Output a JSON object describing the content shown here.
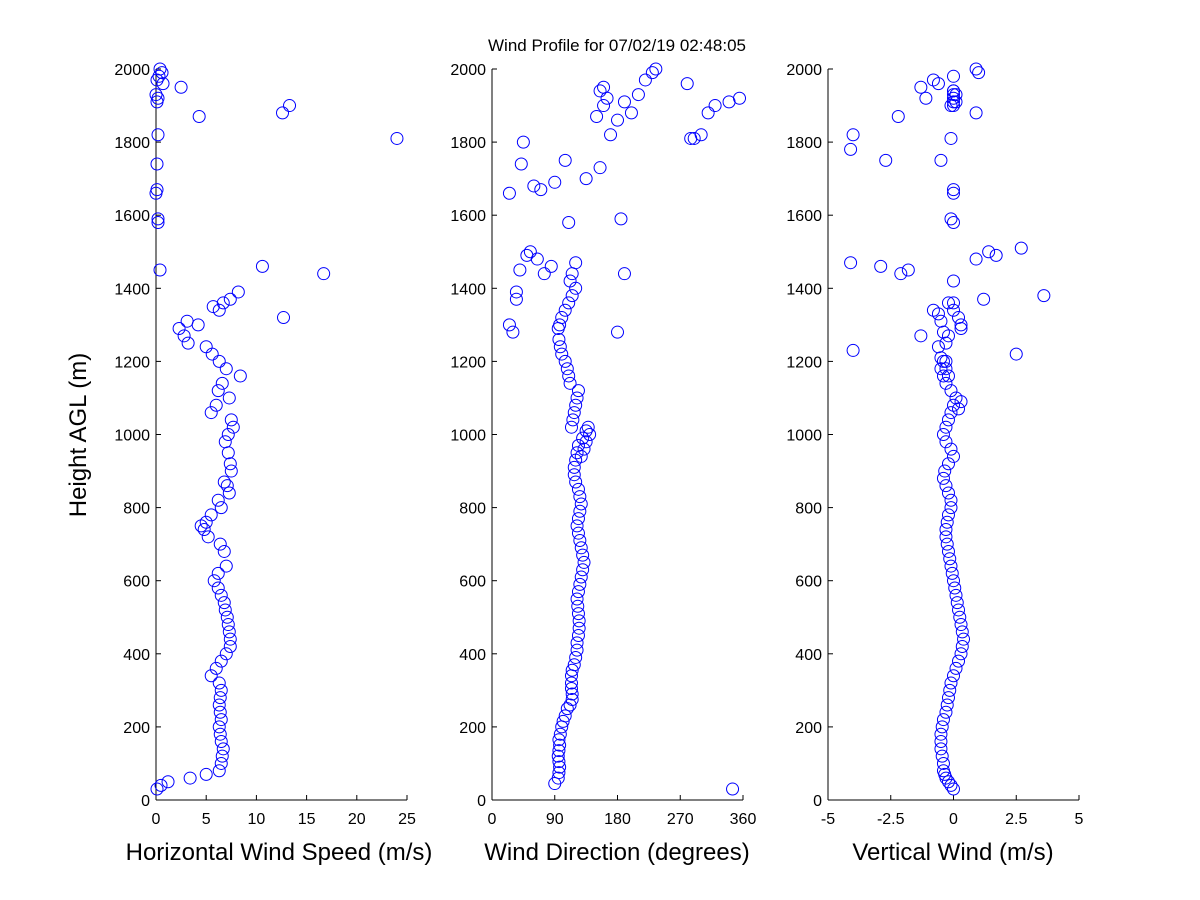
{
  "figure": {
    "title": "Wind Profile for  07/02/19 02:48:05",
    "marker_color": "#0000ff",
    "background": "#ffffff"
  },
  "chart_data": [
    {
      "type": "scatter",
      "xlabel": "Horizontal Wind Speed (m/s)",
      "ylabel": "Height AGL (m)",
      "xlim": [
        0,
        25
      ],
      "ylim": [
        0,
        2000
      ],
      "xticks": [
        "0",
        "5",
        "10",
        "15",
        "20",
        "25"
      ],
      "xtick_values": [
        0,
        5,
        10,
        15,
        20,
        25
      ],
      "yticks": [
        "0",
        "200",
        "400",
        "600",
        "800",
        "1000",
        "1200",
        "1400",
        "1600",
        "1800",
        "2000"
      ],
      "ytick_values": [
        0,
        200,
        400,
        600,
        800,
        1000,
        1200,
        1400,
        1600,
        1800,
        2000
      ],
      "x": [
        0.1,
        0.5,
        1.2,
        3.4,
        5.0,
        6.3,
        6.5,
        6.6,
        6.7,
        6.5,
        6.4,
        6.3,
        6.5,
        6.4,
        6.3,
        6.4,
        6.5,
        6.3,
        5.5,
        6.0,
        6.5,
        7.0,
        7.4,
        7.4,
        7.3,
        7.2,
        7.1,
        6.9,
        6.8,
        6.5,
        6.2,
        5.8,
        6.2,
        7.0,
        6.8,
        6.4,
        5.2,
        4.8,
        4.5,
        5.0,
        5.5,
        6.5,
        6.2,
        7.3,
        7.1,
        6.8,
        7.5,
        7.4,
        7.2,
        6.9,
        7.2,
        7.7,
        7.5,
        5.5,
        6.0,
        7.3,
        6.2,
        6.6,
        8.4,
        7.0,
        6.3,
        5.6,
        5.0,
        3.2,
        2.8,
        2.3,
        4.2,
        3.1,
        12.7,
        6.3,
        5.7,
        6.7,
        7.4,
        8.2,
        16.7,
        0.4,
        10.6,
        0.2,
        0.2,
        0.0,
        0.1,
        0.1,
        24.0,
        0.2,
        4.3,
        12.6,
        13.3,
        0.1,
        0.2,
        0.0,
        2.5,
        0.7,
        0.1,
        0.3,
        0.6,
        0.4
      ],
      "y": [
        30,
        40,
        50,
        60,
        70,
        80,
        100,
        120,
        140,
        160,
        180,
        200,
        220,
        240,
        260,
        280,
        300,
        320,
        340,
        360,
        380,
        400,
        420,
        440,
        460,
        480,
        500,
        520,
        540,
        560,
        580,
        600,
        620,
        640,
        680,
        700,
        720,
        740,
        750,
        760,
        780,
        800,
        820,
        840,
        860,
        870,
        900,
        920,
        950,
        980,
        1000,
        1020,
        1040,
        1060,
        1080,
        1100,
        1120,
        1140,
        1160,
        1180,
        1200,
        1220,
        1240,
        1250,
        1270,
        1290,
        1300,
        1310,
        1320,
        1340,
        1350,
        1360,
        1370,
        1390,
        1440,
        1450,
        1460,
        1580,
        1590,
        1660,
        1670,
        1740,
        1810,
        1820,
        1870,
        1880,
        1900,
        1910,
        1920,
        1930,
        1950,
        1960,
        1970,
        1980,
        1990,
        2000
      ]
    },
    {
      "type": "scatter",
      "xlabel": "Wind Direction (degrees)",
      "ylabel": "",
      "xlim": [
        0,
        360
      ],
      "ylim": [
        0,
        2000
      ],
      "xticks": [
        "0",
        "90",
        "180",
        "270",
        "360"
      ],
      "xtick_values": [
        0,
        90,
        180,
        270,
        360
      ],
      "yticks": [
        "0",
        "200",
        "400",
        "600",
        "800",
        "1000",
        "1200",
        "1400",
        "1600",
        "1800",
        "2000"
      ],
      "ytick_values": [
        0,
        200,
        400,
        600,
        800,
        1000,
        1200,
        1400,
        1600,
        1800,
        2000
      ],
      "x": [
        345,
        90,
        95,
        96,
        97,
        96,
        95,
        96,
        97,
        96,
        98,
        100,
        102,
        105,
        108,
        112,
        115,
        115,
        114,
        114,
        114,
        115,
        118,
        120,
        122,
        122,
        124,
        125,
        125,
        124,
        123,
        122,
        124,
        126,
        128,
        130,
        132,
        130,
        128,
        126,
        124,
        122,
        124,
        126,
        128,
        126,
        124,
        120,
        118,
        118,
        120,
        122,
        124,
        130,
        135,
        138,
        140,
        135,
        132,
        128,
        124,
        122,
        120,
        118,
        116,
        114,
        112,
        110,
        108,
        105,
        100,
        98,
        96,
        95,
        97,
        100,
        105,
        110,
        115,
        120,
        112,
        75,
        85,
        65,
        55,
        50,
        40,
        25,
        30,
        35,
        35,
        45,
        42,
        25,
        70,
        60,
        90,
        105,
        110,
        135,
        180,
        185,
        190,
        115,
        120,
        150,
        155,
        160,
        165,
        190,
        155,
        160,
        170,
        180,
        200,
        210,
        220,
        230,
        235,
        280,
        285,
        290,
        300,
        310,
        320,
        340,
        355
      ],
      "y": [
        30,
        45,
        60,
        75,
        90,
        105,
        120,
        135,
        150,
        165,
        180,
        200,
        215,
        230,
        250,
        260,
        275,
        290,
        305,
        320,
        340,
        355,
        370,
        390,
        410,
        430,
        450,
        470,
        490,
        510,
        530,
        550,
        570,
        590,
        610,
        630,
        650,
        670,
        690,
        710,
        730,
        750,
        770,
        790,
        810,
        830,
        850,
        870,
        890,
        910,
        930,
        950,
        970,
        990,
        1010,
        1020,
        1000,
        980,
        960,
        940,
        1120,
        1100,
        1080,
        1060,
        1040,
        1020,
        1140,
        1160,
        1180,
        1200,
        1220,
        1240,
        1260,
        1290,
        1300,
        1320,
        1340,
        1360,
        1380,
        1400,
        1420,
        1440,
        1460,
        1480,
        1500,
        1490,
        1450,
        1300,
        1280,
        1370,
        1390,
        1800,
        1740,
        1660,
        1670,
        1680,
        1690,
        1750,
        1580,
        1700,
        1280,
        1590,
        1440,
        1440,
        1470,
        1870,
        1730,
        1900,
        1920,
        1910,
        1940,
        1950,
        1820,
        1860,
        1880,
        1930,
        1970,
        1990,
        2000,
        1960,
        1810,
        1810,
        1820,
        1880,
        1900,
        1910,
        1920
      ],
      "note_points": "approximate"
    },
    {
      "type": "scatter",
      "xlabel": "Vertical Wind (m/s)",
      "ylabel": "",
      "xlim": [
        -5,
        5
      ],
      "ylim": [
        0,
        2000
      ],
      "xticks": [
        "-5",
        "-2.5",
        "0",
        "2.5",
        "5"
      ],
      "xtick_values": [
        -5,
        -2.5,
        0,
        2.5,
        5
      ],
      "yticks": [
        "0",
        "200",
        "400",
        "600",
        "800",
        "1000",
        "1200",
        "1400",
        "1600",
        "1800",
        "2000"
      ],
      "ytick_values": [
        0,
        200,
        400,
        600,
        800,
        1000,
        1200,
        1400,
        1600,
        1800,
        2000
      ],
      "x": [
        0.0,
        -0.1,
        -0.2,
        -0.3,
        -0.35,
        -0.4,
        -0.4,
        -0.45,
        -0.5,
        -0.5,
        -0.5,
        -0.45,
        -0.4,
        -0.3,
        -0.25,
        -0.2,
        -0.15,
        -0.1,
        0.0,
        0.1,
        0.2,
        0.3,
        0.35,
        0.4,
        0.35,
        0.3,
        0.25,
        0.2,
        0.15,
        0.1,
        0.05,
        0.0,
        -0.05,
        -0.1,
        -0.15,
        -0.2,
        -0.25,
        -0.3,
        -0.3,
        -0.25,
        -0.2,
        -0.1,
        -0.1,
        -0.2,
        -0.3,
        -0.4,
        -0.35,
        -0.2,
        0.0,
        -0.1,
        -0.3,
        -0.4,
        -0.3,
        -0.2,
        -0.1,
        0.0,
        0.2,
        0.3,
        0.1,
        -0.1,
        -0.3,
        -0.2,
        -0.3,
        -0.4,
        -0.5,
        -0.4,
        -0.3,
        -0.2,
        0.3,
        0.3,
        0.2,
        0.0,
        -0.2,
        -0.4,
        -0.5,
        -0.6,
        -0.8,
        -1.3,
        -0.6,
        -0.5,
        -0.3,
        0.0,
        0.0,
        1.2,
        0.9,
        1.4,
        1.7,
        2.7,
        3.6,
        2.5,
        -4.0,
        -4.1,
        -2.9,
        -2.1,
        -1.8,
        -0.5,
        -0.1,
        0.0,
        -0.1,
        0.0,
        0.0,
        -0.1,
        0.0,
        0.0,
        0.0,
        -4.1,
        -4.0,
        -2.7,
        -2.2,
        -1.1,
        -1.3,
        -0.8,
        -0.6,
        0.0,
        0.1,
        0.0,
        0.0,
        0.9,
        1.0,
        0.9,
        0.0,
        0.1
      ],
      "y": [
        30,
        40,
        50,
        60,
        70,
        80,
        100,
        120,
        140,
        160,
        180,
        200,
        220,
        240,
        260,
        280,
        300,
        320,
        340,
        360,
        380,
        400,
        420,
        440,
        460,
        480,
        500,
        520,
        540,
        560,
        580,
        600,
        620,
        640,
        660,
        680,
        700,
        720,
        740,
        760,
        780,
        800,
        820,
        840,
        860,
        880,
        900,
        920,
        940,
        960,
        980,
        1000,
        1020,
        1040,
        1060,
        1080,
        1070,
        1090,
        1100,
        1120,
        1140,
        1160,
        1180,
        1200,
        1180,
        1160,
        1250,
        1270,
        1290,
        1300,
        1320,
        1340,
        1360,
        1280,
        1310,
        1330,
        1340,
        1270,
        1240,
        1210,
        1200,
        1360,
        1420,
        1370,
        1480,
        1500,
        1490,
        1510,
        1380,
        1220,
        1230,
        1470,
        1460,
        1440,
        1450,
        1750,
        1810,
        1580,
        1590,
        1660,
        1670,
        1900,
        1920,
        1940,
        1980,
        1780,
        1820,
        1750,
        1870,
        1920,
        1950,
        1970,
        1960,
        1910,
        1910,
        1930,
        1940,
        1880,
        1990,
        2000,
        1900,
        1930
      ]
    }
  ]
}
